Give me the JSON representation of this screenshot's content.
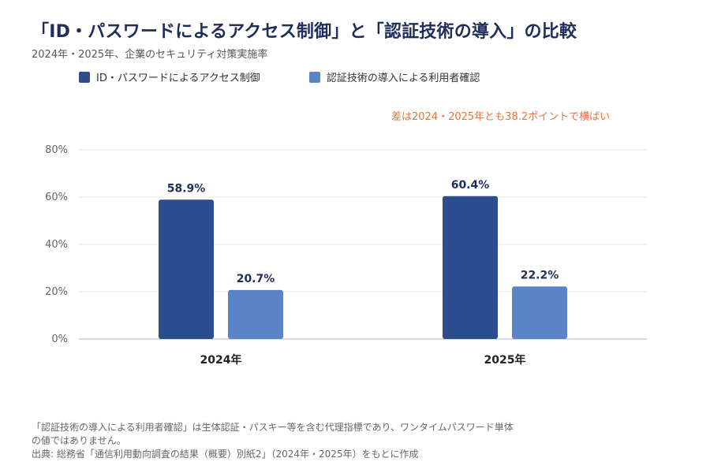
{
  "title": "「ID・パスワードによるアクセス制御」と「認証技術の導入」の比較",
  "subtitle": "2024年・2025年、企業のセキュリティ対策実施率",
  "annotation": "差は2024・2025年とも38.2ポイントで横ばい",
  "footnote": {
    "note": "「認証技術の導入による利用者確認」は生体認証・パスキー等を含む代理指標であり、ワンタイムパスワード単体の値ではありません。",
    "source": "出典: 総務省「通信利用動向調査の結果（概要）別紙2」（2024年・2025年）をもとに作成"
  },
  "chart_data": {
    "type": "bar",
    "categories": [
      "2024年",
      "2025年"
    ],
    "series": [
      {
        "name": "ID・パスワードによるアクセス制御",
        "values": [
          58.9,
          60.4
        ],
        "color": "#2d4e8e"
      },
      {
        "name": "認証技術の導入による利用者確認",
        "values": [
          20.7,
          22.2
        ],
        "color": "#5b84c8"
      }
    ],
    "value_labels": [
      [
        "58.9%",
        "60.4%"
      ],
      [
        "20.7%",
        "22.2%"
      ]
    ],
    "ylim": [
      0,
      80
    ],
    "yticks": [
      0,
      20,
      40,
      60,
      80
    ],
    "ytick_labels": [
      "0%",
      "20%",
      "40%",
      "60%",
      "80%"
    ],
    "xlabel": "",
    "ylabel": "",
    "grid": true,
    "legend_position": "top-left"
  }
}
